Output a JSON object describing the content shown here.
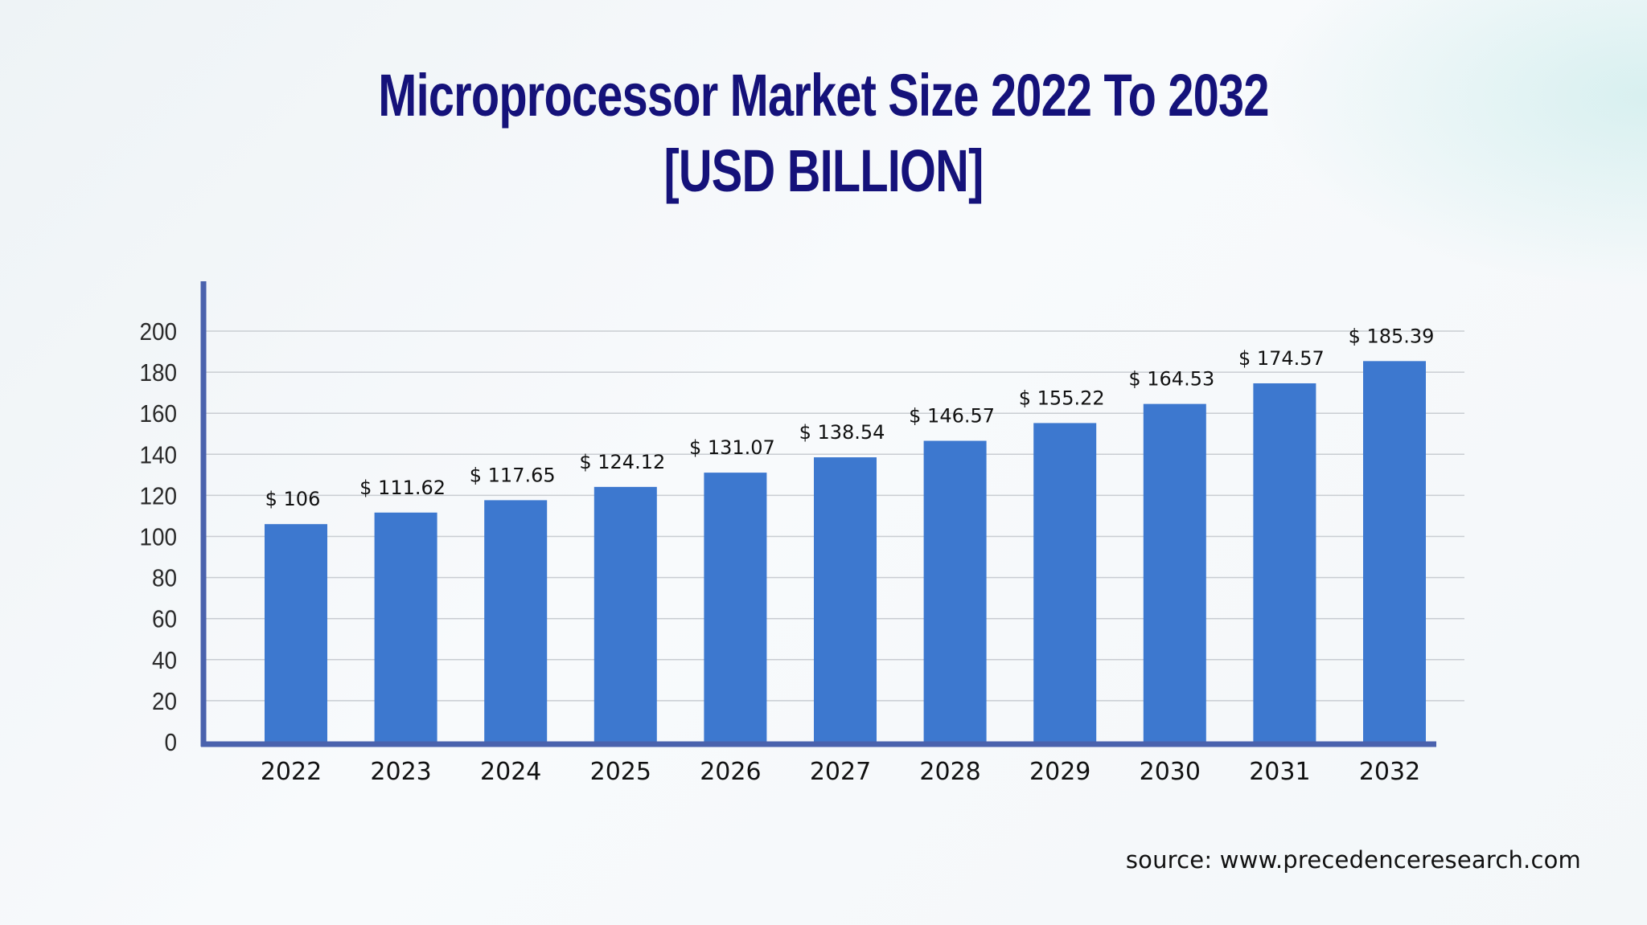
{
  "chart_data": {
    "type": "bar",
    "title": "Microprocessor Market Size 2022 To 2032",
    "subtitle": "[USD BILLION]",
    "categories": [
      "2022",
      "2023",
      "2024",
      "2025",
      "2026",
      "2027",
      "2028",
      "2029",
      "2030",
      "2031",
      "2032"
    ],
    "values": [
      106,
      111.62,
      117.65,
      124.12,
      131.07,
      138.54,
      146.57,
      155.22,
      164.53,
      174.57,
      185.39
    ],
    "data_labels": [
      "$ 106",
      "$ 111.62",
      "$ 117.65",
      "$ 124.12",
      "$ 131.07",
      "$ 138.54",
      "$ 146.57",
      "$ 155.22",
      "$ 164.53",
      "$ 174.57",
      "$ 185.39"
    ],
    "y_ticks": [
      0,
      20,
      40,
      60,
      80,
      100,
      120,
      140,
      160,
      180,
      200
    ],
    "ylim": [
      0,
      200
    ],
    "xlabel": "",
    "ylabel": "",
    "grid": true,
    "bar_color": "#3d78cf",
    "axis_color": "#4a62ad",
    "title_color": "#15127a"
  },
  "source": "source: www.precedenceresearch.com"
}
